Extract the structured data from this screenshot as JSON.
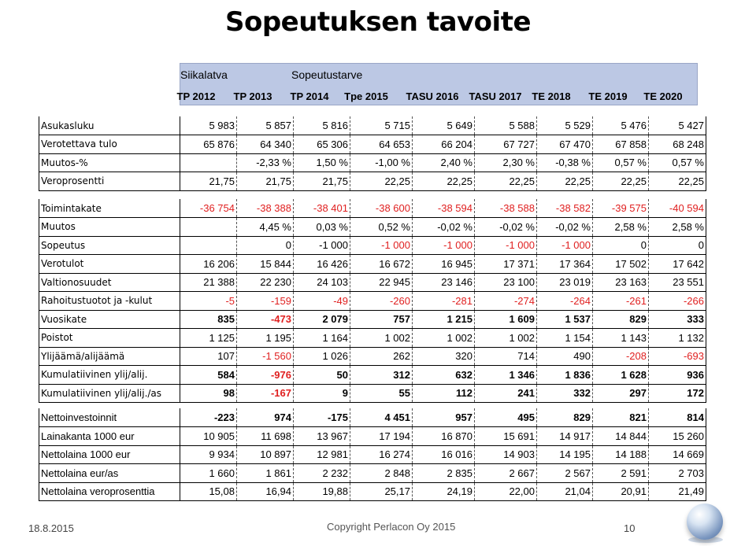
{
  "title": "Sopeutuksen tavoite",
  "header": {
    "siikalatva": "Siikalatva",
    "sopeutustarve": "Sopeutustarve",
    "columns": [
      "TP 2012",
      "TP 2013",
      "TP 2014",
      "Tpe 2015",
      "TASU 2016",
      "TASU 2017",
      "TE 2018",
      "TE 2019",
      "TE 2020"
    ]
  },
  "table1": [
    {
      "label": "Asukasluku",
      "cells": [
        "5 983",
        "5 857",
        "5 816",
        "5 715",
        "5 649",
        "5 588",
        "5 529",
        "5 476",
        "5 427"
      ]
    },
    {
      "label": "Verotettava tulo",
      "cells": [
        "65 876",
        "64 340",
        "65 306",
        "64 653",
        "66 204",
        "67 727",
        "67 470",
        "67 858",
        "68 248"
      ]
    },
    {
      "label": "Muutos-%",
      "cells": [
        "",
        "-2,33 %",
        "1,50 %",
        "-1,00 %",
        "2,40 %",
        "2,30 %",
        "-0,38 %",
        "0,57 %",
        "0,57 %"
      ]
    },
    {
      "label": "Veroprosentti",
      "cells": [
        "21,75",
        "21,75",
        "21,75",
        "22,25",
        "22,25",
        "22,25",
        "22,25",
        "22,25",
        "22,25"
      ]
    }
  ],
  "table2": [
    {
      "label": "Toimintakate",
      "cells": [
        "-36 754",
        "-38 388",
        "-38 401",
        "-38 600",
        "-38 594",
        "-38 588",
        "-38 582",
        "-39 575",
        "-40 594"
      ],
      "red": [
        1,
        1,
        1,
        1,
        1,
        1,
        1,
        1,
        1
      ],
      "bold": false
    },
    {
      "label": "Muutos",
      "cells": [
        "",
        "4,45 %",
        "0,03 %",
        "0,52 %",
        "-0,02 %",
        "-0,02 %",
        "-0,02 %",
        "2,58 %",
        "2,58 %"
      ],
      "red": [
        0,
        0,
        0,
        0,
        0,
        0,
        0,
        0,
        0
      ],
      "bold": false
    },
    {
      "label": "Sopeutus",
      "cells": [
        "",
        "0",
        "-1 000",
        "-1 000",
        "-1 000",
        "-1 000",
        "-1 000",
        "0",
        "0"
      ],
      "red": [
        0,
        0,
        0,
        1,
        1,
        1,
        1,
        0,
        0
      ],
      "bold": false
    },
    {
      "label": "Verotulot",
      "cells": [
        "16 206",
        "15 844",
        "16 426",
        "16 672",
        "16 945",
        "17 371",
        "17 364",
        "17 502",
        "17 642"
      ],
      "red": [
        0,
        0,
        0,
        0,
        0,
        0,
        0,
        0,
        0
      ],
      "bold": false
    },
    {
      "label": "Valtionosuudet",
      "cells": [
        "21 388",
        "22 230",
        "24 103",
        "22 945",
        "23 146",
        "23 100",
        "23 019",
        "23 163",
        "23 551"
      ],
      "red": [
        0,
        0,
        0,
        0,
        0,
        0,
        0,
        0,
        0
      ],
      "bold": false
    },
    {
      "label": "Rahoitustuotot ja -kulut",
      "cells": [
        "-5",
        "-159",
        "-49",
        "-260",
        "-281",
        "-274",
        "-264",
        "-261",
        "-266"
      ],
      "red": [
        1,
        1,
        1,
        1,
        1,
        1,
        1,
        1,
        1
      ],
      "bold": false
    },
    {
      "label": "Vuosikate",
      "cells": [
        "835",
        "-473",
        "2 079",
        "757",
        "1 215",
        "1 609",
        "1 537",
        "829",
        "333"
      ],
      "red": [
        0,
        1,
        0,
        0,
        0,
        0,
        0,
        0,
        0
      ],
      "bold": true
    },
    {
      "label": "Poistot",
      "cells": [
        "1 125",
        "1 195",
        "1 164",
        "1 002",
        "1 002",
        "1 002",
        "1 154",
        "1 143",
        "1 132"
      ],
      "red": [
        0,
        0,
        0,
        0,
        0,
        0,
        0,
        0,
        0
      ],
      "bold": false
    },
    {
      "label": "Ylijäämä/alijäämä",
      "cells": [
        "107",
        "-1 560",
        "1 026",
        "262",
        "320",
        "714",
        "490",
        "-208",
        "-693"
      ],
      "red": [
        0,
        1,
        0,
        0,
        0,
        0,
        0,
        1,
        1
      ],
      "bold": false
    },
    {
      "label": "Kumulatiivinen ylij/alij.",
      "cells": [
        "584",
        "-976",
        "50",
        "312",
        "632",
        "1 346",
        "1 836",
        "1 628",
        "936"
      ],
      "red": [
        0,
        1,
        0,
        0,
        0,
        0,
        0,
        0,
        0
      ],
      "bold": true
    },
    {
      "label": "Kumulatiivinen ylij/alij./as",
      "cells": [
        "98",
        "-167",
        "9",
        "55",
        "112",
        "241",
        "332",
        "297",
        "172"
      ],
      "red": [
        0,
        1,
        0,
        0,
        0,
        0,
        0,
        0,
        0
      ],
      "bold": true
    }
  ],
  "table3": [
    {
      "label": "Nettoinvestoinnit",
      "cells": [
        "-223",
        "974",
        "-175",
        "4 451",
        "957",
        "495",
        "829",
        "821",
        "814"
      ],
      "bold": true
    },
    {
      "label": "Lainakanta 1000 eur",
      "cells": [
        "10 905",
        "11 698",
        "13 967",
        "17 194",
        "16 870",
        "15 691",
        "14 917",
        "14 844",
        "15 260"
      ],
      "bold": false
    },
    {
      "label": "Nettolaina 1000 eur",
      "cells": [
        "9 934",
        "10 897",
        "12 981",
        "16 274",
        "16 016",
        "14 903",
        "14 195",
        "14 188",
        "14 669"
      ],
      "bold": false
    },
    {
      "label": "Nettolaina eur/as",
      "cells": [
        "1 660",
        "1 861",
        "2 232",
        "2 848",
        "2 835",
        "2 667",
        "2 567",
        "2 591",
        "2 703"
      ],
      "bold": false
    },
    {
      "label": "Nettolaina veroprosenttia",
      "cells": [
        "15,08",
        "16,94",
        "19,88",
        "25,17",
        "24,19",
        "22,00",
        "21,04",
        "20,91",
        "21,49"
      ],
      "bold": false
    }
  ],
  "footer": {
    "date": "18.8.2015",
    "copyright": "Copyright Perlacon Oy 2015",
    "page": "10"
  }
}
